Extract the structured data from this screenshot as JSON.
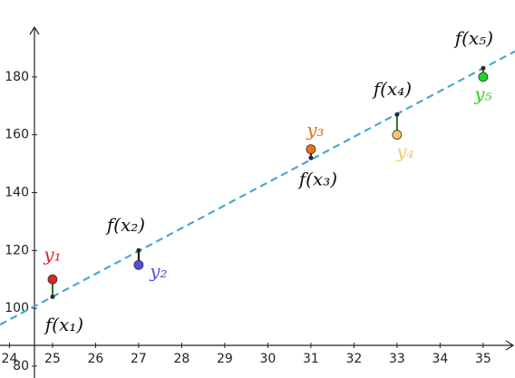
{
  "chart_data": {
    "type": "scatter",
    "x": [
      25,
      27,
      31,
      33,
      35
    ],
    "observed": {
      "values": [
        110,
        115,
        155,
        160,
        180
      ],
      "labels": [
        "y₁",
        "y₂",
        "y₃",
        "y₄",
        "y₅"
      ],
      "colors": [
        "#d62728",
        "#5050e0",
        "#e8701a",
        "#f5c96b",
        "#22d622"
      ]
    },
    "fitted": {
      "values": [
        104,
        120,
        152,
        167,
        183
      ],
      "labels": [
        "f(x₁)",
        "f(x₂)",
        "f(x₃)",
        "f(x₄)",
        "f(x₅)"
      ],
      "color": "#2b2b2b",
      "residual_colors": [
        "#1e7a1e",
        "#111111",
        "#222222",
        "#1e7a1e",
        "#1e7a1e"
      ]
    },
    "fit_line": {
      "slope": 7.9,
      "intercept": -93.5,
      "color": "#4aa8d0"
    },
    "xlim": [
      23.78,
      35.74
    ],
    "ylim": [
      75.9,
      206.6
    ],
    "xticks": [
      24,
      25,
      26,
      27,
      28,
      29,
      30,
      31,
      32,
      33,
      34,
      35
    ],
    "yticks": [
      80,
      100,
      120,
      140,
      160,
      180
    ]
  }
}
